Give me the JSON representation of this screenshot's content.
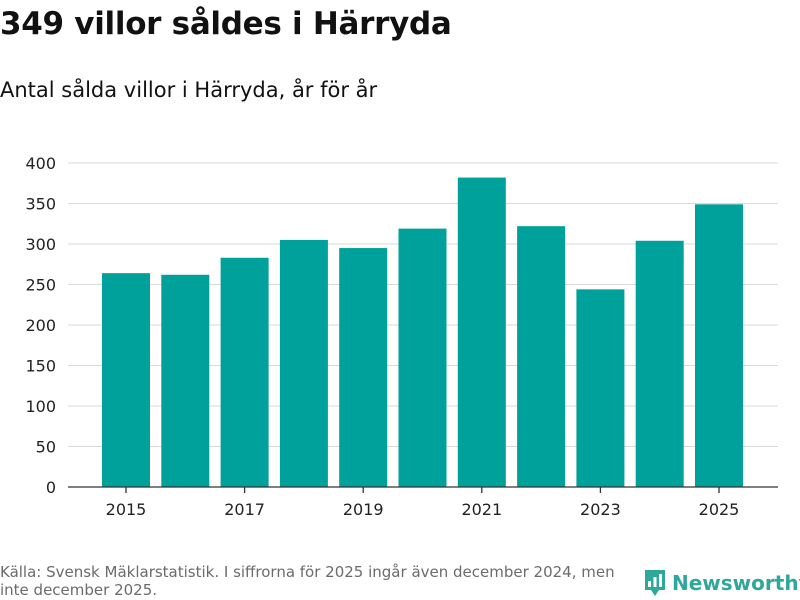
{
  "title": "349 villor såldes i Härryda",
  "subtitle": "Antal sålda villor i Härryda, år för år",
  "footnote": "Källa: Svensk Mäklarstatistik. I siffrorna för 2025 ingår även december 2024, men inte december 2025.",
  "brand": {
    "name": "Newsworthy",
    "icon": "newsworthy-logo-icon",
    "color": "#2ea89a"
  },
  "colors": {
    "bar": "#00a19a",
    "grid": "#d9d9d9"
  },
  "chart_data": {
    "type": "bar",
    "title": "349 villor såldes i Härryda",
    "subtitle": "Antal sålda villor i Härryda, år för år",
    "xlabel": "",
    "ylabel": "",
    "categories": [
      "2015",
      "2016",
      "2017",
      "2018",
      "2019",
      "2020",
      "2021",
      "2022",
      "2023",
      "2024",
      "2025"
    ],
    "values": [
      264,
      262,
      283,
      305,
      295,
      319,
      382,
      322,
      244,
      304,
      349
    ],
    "x_tick_labels": [
      "2015",
      "2017",
      "2019",
      "2021",
      "2023",
      "2025"
    ],
    "y_ticks": [
      0,
      50,
      100,
      150,
      200,
      250,
      300,
      350,
      400
    ],
    "ylim": [
      0,
      400
    ],
    "grid": true,
    "legend": "none"
  }
}
